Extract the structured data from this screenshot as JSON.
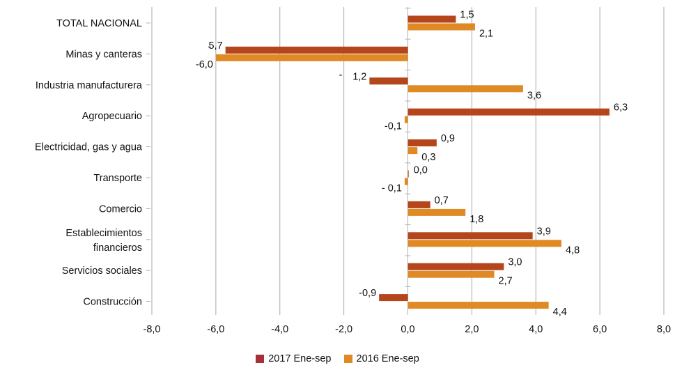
{
  "chart_data": {
    "type": "bar",
    "orientation": "horizontal",
    "categories": [
      "TOTAL NACIONAL",
      "Minas y canteras",
      "Industria manufacturera",
      "Agropecuario",
      "Electricidad, gas y agua",
      "Transporte",
      "Comercio",
      "Establecimientos financieros",
      "Servicios sociales",
      "Construcción"
    ],
    "category_lines": [
      [
        "TOTAL NACIONAL"
      ],
      [
        "Minas y canteras"
      ],
      [
        "Industria manufacturera"
      ],
      [
        "Agropecuario"
      ],
      [
        "Electricidad, gas y agua"
      ],
      [
        "Transporte"
      ],
      [
        "Comercio"
      ],
      [
        "Establecimientos",
        "financieros"
      ],
      [
        "Servicios sociales"
      ],
      [
        "Construcción"
      ]
    ],
    "series": [
      {
        "name": "2017 Ene-sep",
        "color": "#b5451b",
        "values": [
          1.5,
          -5.7,
          -1.2,
          6.3,
          0.9,
          0.0,
          0.7,
          3.9,
          3.0,
          -0.9
        ],
        "labels": [
          "1,5",
          "5,7",
          "1,2",
          "6,3",
          "0,9",
          "0,0",
          "0,7",
          "3,9",
          "3,0",
          "-0,9"
        ]
      },
      {
        "name": "2016 Ene-sep",
        "color": "#e08a26",
        "values": [
          2.1,
          -6.0,
          3.6,
          -0.1,
          0.3,
          -0.1,
          1.8,
          4.8,
          2.7,
          4.4
        ],
        "labels": [
          "2,1",
          "-6,0",
          "3,6",
          "-0,1",
          "0,3",
          "- 0,1",
          "1,8",
          "4,8",
          "2,7",
          "4,4"
        ]
      }
    ],
    "stray_marks": [
      "-",
      "-"
    ],
    "xlim": [
      -8,
      8
    ],
    "xticks": [
      -8,
      -6,
      -4,
      -2,
      0,
      2,
      4,
      6,
      8
    ],
    "xtick_labels": [
      "-8,0",
      "-6,0",
      "-4,0",
      "-2,0",
      "0,0",
      "2,0",
      "4,0",
      "6,0",
      "8,0"
    ],
    "grid": "vertical",
    "legend_position": "bottom-center",
    "legend_marker_color_2017": "#a6303a"
  }
}
